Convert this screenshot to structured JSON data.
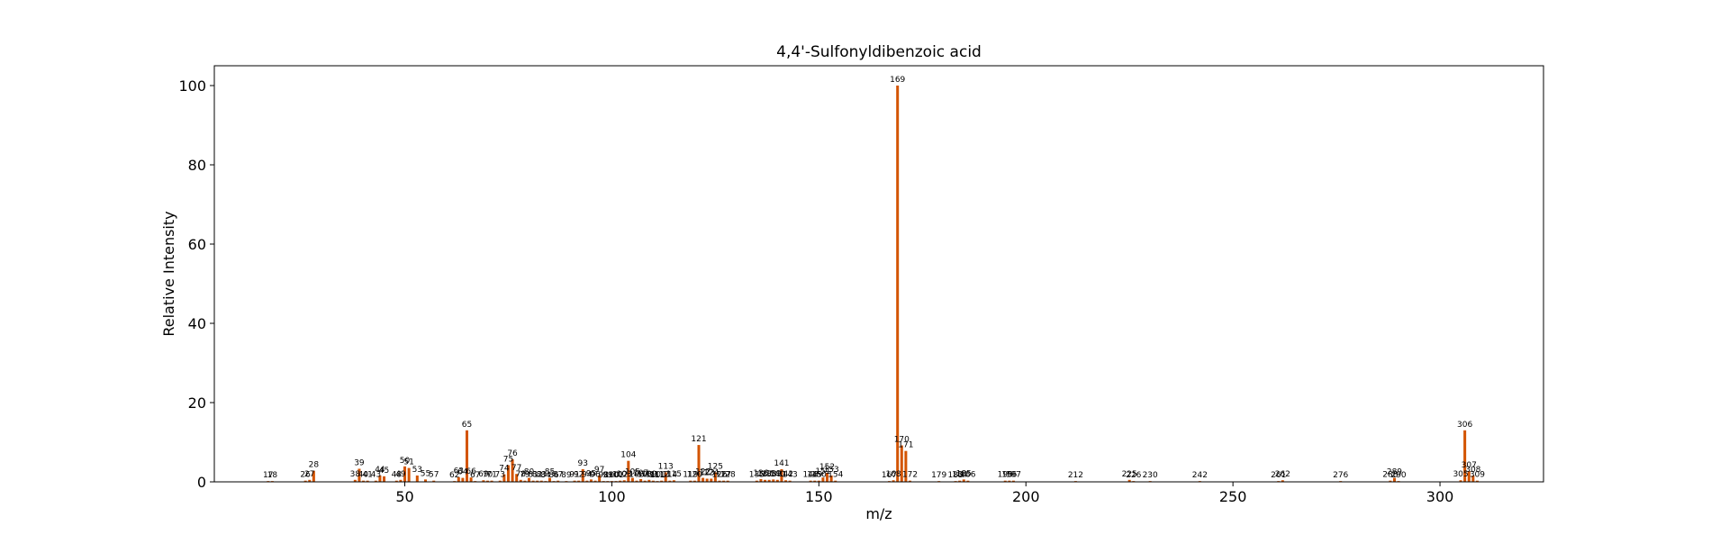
{
  "chart_data": {
    "type": "bar",
    "title": "4,4'-Sulfonyldibenzoic acid",
    "xlabel": "m/z",
    "ylabel": "Relative Intensity",
    "xlim": [
      4,
      325
    ],
    "ylim": [
      0,
      105
    ],
    "xticks": [
      50,
      100,
      150,
      200,
      250,
      300
    ],
    "yticks": [
      0,
      20,
      40,
      60,
      80,
      100
    ],
    "grid": false,
    "bar_color": "#d35400",
    "series": [
      {
        "x": [
          17,
          18,
          26,
          27,
          28,
          38,
          39,
          40,
          41,
          43,
          44,
          45,
          48,
          49,
          50,
          51,
          53,
          55,
          57,
          62,
          63,
          64,
          65,
          66,
          67,
          69,
          70,
          71,
          73,
          74,
          75,
          76,
          77,
          78,
          79,
          80,
          81,
          82,
          83,
          84,
          85,
          86,
          87,
          89,
          91,
          92,
          93,
          94,
          95,
          96,
          97,
          98,
          99,
          100,
          101,
          102,
          103,
          104,
          105,
          106,
          107,
          108,
          109,
          110,
          111,
          112,
          113,
          114,
          115,
          119,
          120,
          121,
          122,
          123,
          124,
          125,
          126,
          127,
          128,
          135,
          136,
          137,
          138,
          139,
          140,
          141,
          142,
          143,
          148,
          149,
          150,
          151,
          152,
          153,
          154,
          167,
          168,
          169,
          170,
          171,
          172,
          179,
          183,
          184,
          185,
          186,
          195,
          196,
          197,
          212,
          225,
          226,
          230,
          242,
          261,
          262,
          276,
          288,
          289,
          290,
          305,
          306,
          307,
          308,
          309
        ],
        "values": [
          0.2,
          0.2,
          0.3,
          0.5,
          2.8,
          0.5,
          3.3,
          0.3,
          0.3,
          0.3,
          1.6,
          1.4,
          0.3,
          0.5,
          3.9,
          3.5,
          1.6,
          0.6,
          0.3,
          0.2,
          1.2,
          1.0,
          13.0,
          1.1,
          0.2,
          0.4,
          0.3,
          0.3,
          0.3,
          1.9,
          4.2,
          5.7,
          2.0,
          0.5,
          0.3,
          1.0,
          0.3,
          0.3,
          0.3,
          0.2,
          1.0,
          0.2,
          0.3,
          0.2,
          0.3,
          0.3,
          3.2,
          0.3,
          0.6,
          0.3,
          1.6,
          0.2,
          0.2,
          0.2,
          0.2,
          0.3,
          0.4,
          5.3,
          1.0,
          0.3,
          0.7,
          0.3,
          0.5,
          0.3,
          0.2,
          0.3,
          2.4,
          0.3,
          0.4,
          0.3,
          0.3,
          9.3,
          1.0,
          0.8,
          0.8,
          2.4,
          0.3,
          0.3,
          0.3,
          0.3,
          0.7,
          0.5,
          0.5,
          0.6,
          0.5,
          3.2,
          0.4,
          0.3,
          0.3,
          0.3,
          0.3,
          1.1,
          2.3,
          1.6,
          0.3,
          0.2,
          0.4,
          100.0,
          9.2,
          7.8,
          0.3,
          0.2,
          0.2,
          0.3,
          0.6,
          0.3,
          0.3,
          0.3,
          0.3,
          0.2,
          0.5,
          0.2,
          0.2,
          0.2,
          0.2,
          0.4,
          0.2,
          0.3,
          1.0,
          0.2,
          0.4,
          13.0,
          2.7,
          1.6,
          0.3
        ],
        "labels": [
          "17",
          "18",
          "26",
          "27",
          "28",
          "38",
          "39",
          "40",
          "41",
          "43",
          "44",
          "45",
          "48",
          "49",
          "50",
          "51",
          "53",
          "55",
          "57",
          "62",
          "63",
          "64",
          "65",
          "66",
          "67",
          "69",
          "70",
          "71",
          "73",
          "74",
          "75",
          "76",
          "77",
          "78",
          "79",
          "80",
          "81",
          "82",
          "83",
          "84",
          "85",
          "86",
          "87",
          "89",
          "91",
          "92",
          "93",
          "94",
          "95",
          "96",
          "97",
          "98",
          "99",
          "100",
          "101",
          "102",
          "103",
          "104",
          "105",
          "106",
          "107",
          "108",
          "109",
          "110",
          "111",
          "112",
          "113",
          "114",
          "115",
          "119",
          "120",
          "121",
          "122",
          "123",
          "124",
          "125",
          "126",
          "127",
          "128",
          "135",
          "136",
          "137",
          "138",
          "139",
          "140",
          "141",
          "142",
          "143",
          "148",
          "149",
          "150",
          "151",
          "152",
          "153",
          "154",
          "167",
          "168",
          "169",
          "170",
          "171",
          "172",
          "179",
          "183",
          "184",
          "185",
          "186",
          "195",
          "196",
          "197",
          "212",
          "225",
          "226",
          "230",
          "242",
          "261",
          "262",
          "276",
          "288",
          "289",
          "290",
          "305",
          "306",
          "307",
          "308",
          "309"
        ]
      }
    ]
  }
}
